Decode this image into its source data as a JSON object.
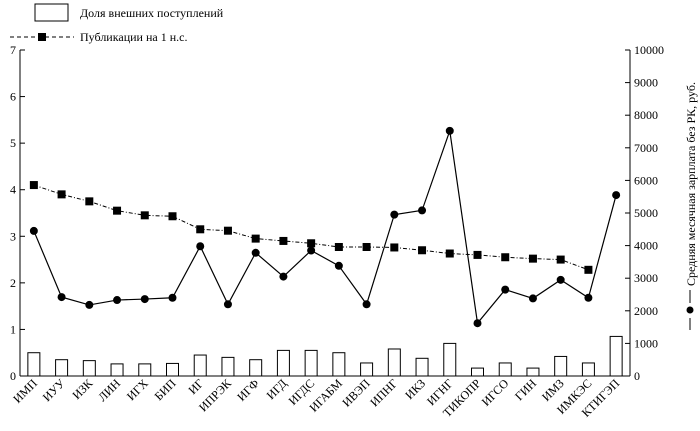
{
  "chart_data": {
    "type": "bar+line",
    "categories": [
      "ИМП",
      "ИУУ",
      "ИЗК",
      "ЛИН",
      "ИГХ",
      "БИП",
      "ИГ",
      "ИПРЭК",
      "ИГФ",
      "ИГД",
      "ИГДС",
      "ИГАБМ",
      "ИВЭП",
      "ИПНГ",
      "ИКЗ",
      "ИГНГ",
      "ТИКОПР",
      "ИГСО",
      "ГИН",
      "ИМЗ",
      "ИМКЭС",
      "КТИГЭП"
    ],
    "series": [
      {
        "name": "Доля внешних поступлений",
        "type": "bar",
        "axis": "left",
        "values": [
          0.5,
          0.35,
          0.33,
          0.26,
          0.26,
          0.27,
          0.45,
          0.4,
          0.35,
          0.55,
          0.55,
          0.5,
          0.28,
          0.58,
          0.38,
          0.7,
          0.17,
          0.28,
          0.17,
          0.42,
          0.28,
          0.85
        ]
      },
      {
        "name": "Публикации на 1 н.с.",
        "type": "line",
        "style": "dashed-square",
        "axis": "left",
        "values": [
          4.1,
          3.9,
          3.75,
          3.55,
          3.45,
          3.43,
          3.15,
          3.12,
          2.95,
          2.9,
          2.85,
          2.77,
          2.77,
          2.76,
          2.7,
          2.63,
          2.6,
          2.55,
          2.52,
          2.5,
          2.28,
          null
        ]
      },
      {
        "name": "Средняя месячная зарплата без РК, руб.",
        "type": "line",
        "style": "solid-circle",
        "axis": "right",
        "values": [
          4450,
          2420,
          2180,
          2330,
          2360,
          2400,
          3980,
          2200,
          3780,
          3050,
          3850,
          3380,
          2200,
          4950,
          5080,
          7520,
          1620,
          2650,
          2380,
          2950,
          2400,
          5550
        ]
      }
    ],
    "left_axis": {
      "min": 0,
      "max": 7,
      "ticks": [
        "0",
        "1",
        "2",
        "3",
        "4",
        "5",
        "6",
        "7"
      ]
    },
    "right_axis": {
      "min": 0,
      "max": 10000,
      "ticks": [
        "0",
        "1000",
        "2000",
        "3000",
        "4000",
        "5000",
        "6000",
        "7000",
        "8000",
        "9000",
        "10000"
      ],
      "label": "Средняя месячная зарплата без РК, руб."
    },
    "legend": [
      {
        "label": "Доля внешних поступлений",
        "symbol": "bar"
      },
      {
        "label": "Публикации на 1 н.с.",
        "symbol": "dashed-square"
      }
    ],
    "grid": false,
    "colors": {
      "ink": "#000000",
      "bar_fill": "#ffffff"
    }
  }
}
